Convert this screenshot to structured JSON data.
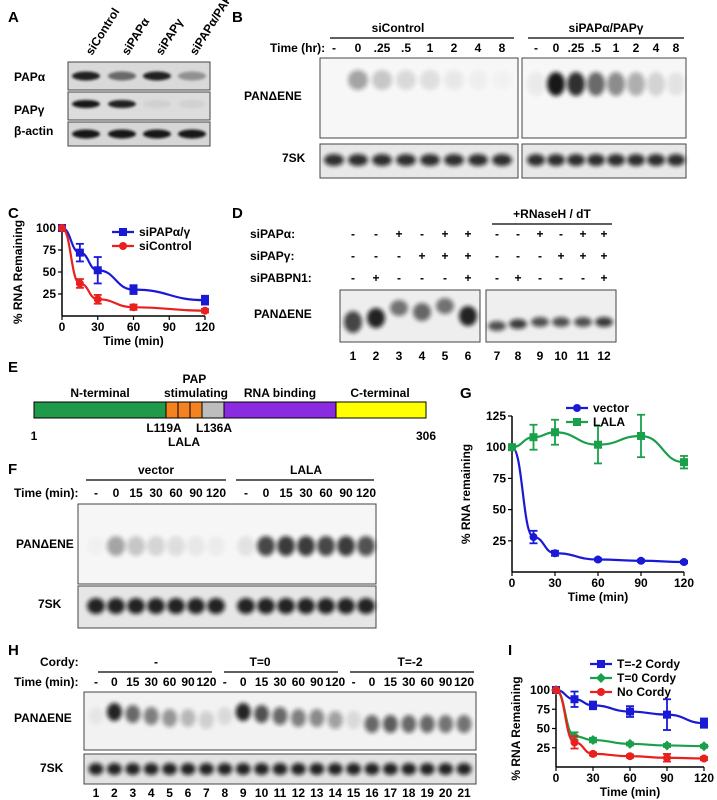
{
  "panel_labels": {
    "A": "A",
    "B": "B",
    "C": "C",
    "D": "D",
    "E": "E",
    "F": "F",
    "G": "G",
    "H": "H",
    "I": "I"
  },
  "panelA": {
    "lanes": [
      "siControl",
      "siPAPα",
      "siPAPγ",
      "siPAPα/PAPγ"
    ],
    "rows": [
      "PAPα",
      "PAPγ",
      "β-actin"
    ]
  },
  "panelB": {
    "groups": [
      "siControl",
      "siPAPα/PAPγ"
    ],
    "time_label": "Time (hr):",
    "times": [
      "-",
      "0",
      ".25",
      ".5",
      "1",
      "2",
      "4",
      "8"
    ],
    "rows": [
      "PANΔENE",
      "7SK"
    ]
  },
  "panelD": {
    "treatment": "+RNaseH / dT",
    "row_labels": [
      "siPAPα:",
      "siPAPγ:",
      "siPABPN1:"
    ],
    "signs": [
      [
        "-",
        "-",
        "+",
        "-",
        "+",
        "+",
        "-",
        "-",
        "+",
        "-",
        "+",
        "+"
      ],
      [
        "-",
        "-",
        "-",
        "+",
        "+",
        "+",
        "-",
        "-",
        "-",
        "+",
        "+",
        "+"
      ],
      [
        "-",
        "+",
        "-",
        "-",
        "-",
        "+",
        "-",
        "+",
        "-",
        "-",
        "-",
        "+"
      ]
    ],
    "blot_label": "PANΔENE",
    "lanes": [
      "1",
      "2",
      "3",
      "4",
      "5",
      "6",
      "7",
      "8",
      "9",
      "10",
      "11",
      "12"
    ]
  },
  "panelE": {
    "domains": [
      "N-terminal",
      "PAP stimulating",
      "RNA binding",
      "C-terminal"
    ],
    "mutations": [
      "L119A",
      "L136A"
    ],
    "mutant_name": "LALA",
    "start": "1",
    "end": "306",
    "colors": {
      "n_term": "#1f9a4a",
      "pap_orange": "#f58220",
      "pap_gray": "#bdbdbd",
      "rna": "#8a2be2",
      "c_term": "#ffff00"
    }
  },
  "panelF": {
    "groups": [
      "vector",
      "LALA"
    ],
    "time_label": "Time (min):",
    "times": [
      "-",
      "0",
      "15",
      "30",
      "60",
      "90",
      "120"
    ],
    "rows": [
      "PANΔENE",
      "7SK"
    ]
  },
  "panelH": {
    "cordy_label": "Cordy:",
    "groups": [
      "-",
      "T=0",
      "T=-2"
    ],
    "time_label": "Time (min):",
    "times": [
      "-",
      "0",
      "15",
      "30",
      "60",
      "90",
      "120"
    ],
    "rows": [
      "PANΔENE",
      "7SK"
    ],
    "lanes": [
      "1",
      "2",
      "3",
      "4",
      "5",
      "6",
      "7",
      "8",
      "9",
      "10",
      "11",
      "12",
      "13",
      "14",
      "15",
      "16",
      "17",
      "18",
      "19",
      "20",
      "21"
    ]
  },
  "chart_data": [
    {
      "panel": "C",
      "type": "line",
      "xlabel": "Time (min)",
      "ylabel": "% RNA Remaining",
      "xlim": [
        0,
        120
      ],
      "ylim": [
        0,
        100
      ],
      "xticks": [
        "0",
        "30",
        "60",
        "90",
        "120"
      ],
      "yticks": [
        "25",
        "50",
        "75",
        "100"
      ],
      "legend_placement": "top-right",
      "series": [
        {
          "name": "siPAPα/γ",
          "color": "#1a1ad6",
          "marker": "square",
          "x": [
            0,
            15,
            30,
            60,
            120
          ],
          "y": [
            100,
            72,
            52,
            30,
            18
          ],
          "err": [
            0,
            10,
            15,
            5,
            5
          ]
        },
        {
          "name": "siControl",
          "color": "#e8201e",
          "marker": "circle",
          "x": [
            0,
            15,
            30,
            60,
            120
          ],
          "y": [
            100,
            37,
            19,
            10,
            6
          ],
          "err": [
            0,
            5,
            5,
            3,
            2
          ]
        }
      ]
    },
    {
      "panel": "G",
      "type": "line",
      "xlabel": "Time (min)",
      "ylabel": "% RNA remaining",
      "xlim": [
        0,
        120
      ],
      "ylim": [
        0,
        125
      ],
      "xticks": [
        "0",
        "30",
        "60",
        "90",
        "120"
      ],
      "yticks": [
        "25",
        "50",
        "75",
        "100",
        "125"
      ],
      "legend_placement": "top-right",
      "series": [
        {
          "name": "vector",
          "color": "#1a1ad6",
          "marker": "circle",
          "x": [
            0,
            15,
            30,
            60,
            90,
            120
          ],
          "y": [
            100,
            28,
            15,
            10,
            9,
            8
          ],
          "err": [
            0,
            5,
            2,
            1,
            1,
            1
          ]
        },
        {
          "name": "LALA",
          "color": "#1aa04a",
          "marker": "square",
          "x": [
            0,
            15,
            30,
            60,
            90,
            120
          ],
          "y": [
            100,
            108,
            112,
            102,
            109,
            88
          ],
          "err": [
            0,
            10,
            10,
            15,
            17,
            5
          ]
        }
      ]
    },
    {
      "panel": "I",
      "type": "line",
      "xlabel": "Time (min)",
      "ylabel": "% RNA Remaining",
      "xlim": [
        0,
        120
      ],
      "ylim": [
        0,
        100
      ],
      "xticks": [
        "0",
        "30",
        "60",
        "90",
        "120"
      ],
      "yticks": [
        "25",
        "50",
        "75",
        "100"
      ],
      "legend_placement": "top-right",
      "series": [
        {
          "name": "T=-2 Cordy",
          "color": "#1a1ad6",
          "marker": "square",
          "x": [
            0,
            15,
            30,
            60,
            90,
            120
          ],
          "y": [
            100,
            88,
            80,
            72,
            68,
            57
          ],
          "err": [
            0,
            10,
            5,
            7,
            20,
            6
          ]
        },
        {
          "name": "T=0 Cordy",
          "color": "#1aa04a",
          "marker": "diamond",
          "x": [
            0,
            15,
            30,
            60,
            90,
            120
          ],
          "y": [
            100,
            40,
            35,
            30,
            28,
            27
          ],
          "err": [
            0,
            5,
            3,
            2,
            2,
            2
          ]
        },
        {
          "name": "No Cordy",
          "color": "#e8201e",
          "marker": "circle",
          "x": [
            0,
            15,
            30,
            60,
            90,
            120
          ],
          "y": [
            100,
            32,
            17,
            14,
            12,
            11
          ],
          "err": [
            0,
            8,
            2,
            2,
            5,
            2
          ]
        }
      ]
    }
  ]
}
